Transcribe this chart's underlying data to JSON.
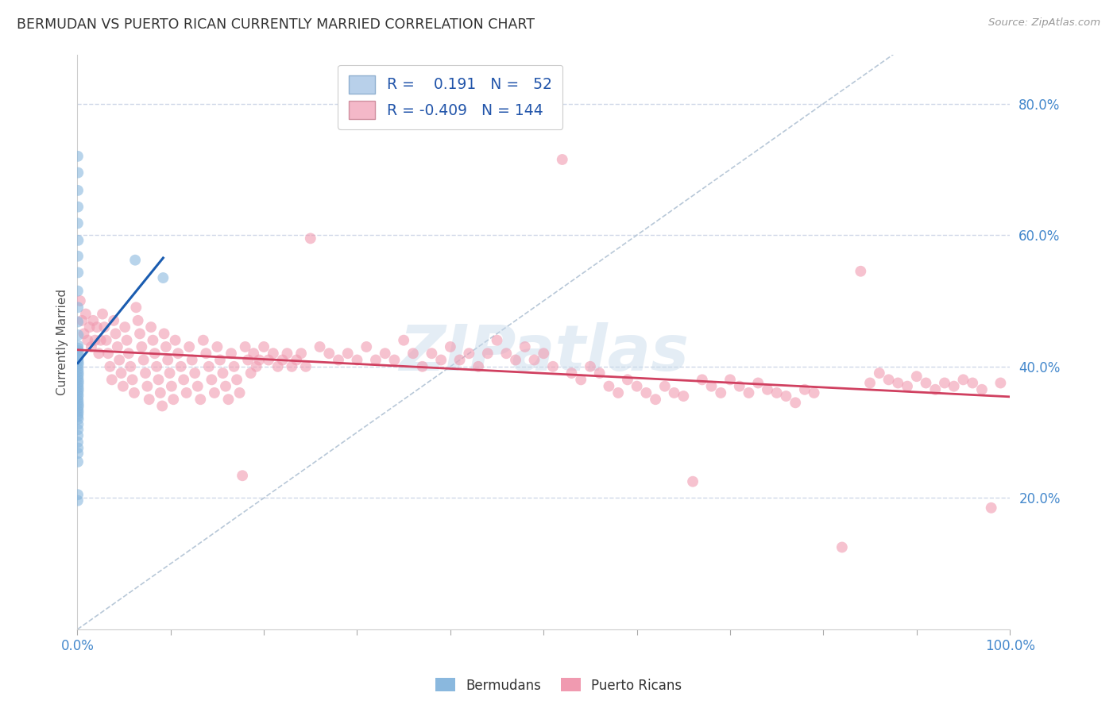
{
  "title": "BERMUDAN VS PUERTO RICAN CURRENTLY MARRIED CORRELATION CHART",
  "source": "Source: ZipAtlas.com",
  "ylabel": "Currently Married",
  "right_yticks": [
    0.2,
    0.4,
    0.6,
    0.8
  ],
  "watermark": "ZIPatlas",
  "blue_dot_color": "#8ab8de",
  "pink_dot_color": "#f09ab0",
  "blue_line_color": "#1a5cb0",
  "pink_line_color": "#d04060",
  "diag_line_color": "#b8c8d8",
  "grid_color": "#d0d8e8",
  "background_color": "#ffffff",
  "xlim": [
    0.0,
    1.0
  ],
  "ylim": [
    0.0,
    0.875
  ],
  "dot_size": 100,
  "dot_alpha": 0.6,
  "legend_blue_color": "#b8d0ea",
  "legend_pink_color": "#f4b8c8",
  "blue_points": [
    [
      0.0005,
      0.72
    ],
    [
      0.0008,
      0.695
    ],
    [
      0.0006,
      0.668
    ],
    [
      0.0007,
      0.643
    ],
    [
      0.0005,
      0.618
    ],
    [
      0.0009,
      0.592
    ],
    [
      0.0006,
      0.568
    ],
    [
      0.0008,
      0.543
    ],
    [
      0.0005,
      0.515
    ],
    [
      0.0007,
      0.49
    ],
    [
      0.0006,
      0.468
    ],
    [
      0.0009,
      0.448
    ],
    [
      0.0008,
      0.432
    ],
    [
      0.0007,
      0.428
    ],
    [
      0.001,
      0.424
    ],
    [
      0.0012,
      0.42
    ],
    [
      0.0009,
      0.416
    ],
    [
      0.0008,
      0.412
    ],
    [
      0.001,
      0.408
    ],
    [
      0.0012,
      0.404
    ],
    [
      0.0007,
      0.4
    ],
    [
      0.0009,
      0.396
    ],
    [
      0.001,
      0.392
    ],
    [
      0.0011,
      0.388
    ],
    [
      0.0008,
      0.384
    ],
    [
      0.001,
      0.38
    ],
    [
      0.0012,
      0.376
    ],
    [
      0.0009,
      0.372
    ],
    [
      0.001,
      0.368
    ],
    [
      0.0011,
      0.364
    ],
    [
      0.0008,
      0.36
    ],
    [
      0.001,
      0.356
    ],
    [
      0.0007,
      0.352
    ],
    [
      0.0009,
      0.348
    ],
    [
      0.001,
      0.344
    ],
    [
      0.0012,
      0.34
    ],
    [
      0.0008,
      0.336
    ],
    [
      0.001,
      0.332
    ],
    [
      0.0009,
      0.328
    ],
    [
      0.0007,
      0.324
    ],
    [
      0.001,
      0.32
    ],
    [
      0.0009,
      0.312
    ],
    [
      0.0008,
      0.304
    ],
    [
      0.0007,
      0.295
    ],
    [
      0.0006,
      0.285
    ],
    [
      0.0008,
      0.276
    ],
    [
      0.0007,
      0.268
    ],
    [
      0.0006,
      0.255
    ],
    [
      0.0005,
      0.196
    ],
    [
      0.062,
      0.562
    ],
    [
      0.092,
      0.535
    ],
    [
      0.0006,
      0.205
    ]
  ],
  "pink_points": [
    [
      0.003,
      0.5
    ],
    [
      0.005,
      0.47
    ],
    [
      0.007,
      0.45
    ],
    [
      0.009,
      0.48
    ],
    [
      0.011,
      0.44
    ],
    [
      0.013,
      0.46
    ],
    [
      0.015,
      0.43
    ],
    [
      0.017,
      0.47
    ],
    [
      0.019,
      0.44
    ],
    [
      0.021,
      0.46
    ],
    [
      0.023,
      0.42
    ],
    [
      0.025,
      0.44
    ],
    [
      0.027,
      0.48
    ],
    [
      0.029,
      0.46
    ],
    [
      0.031,
      0.44
    ],
    [
      0.033,
      0.42
    ],
    [
      0.035,
      0.4
    ],
    [
      0.037,
      0.38
    ],
    [
      0.039,
      0.47
    ],
    [
      0.041,
      0.45
    ],
    [
      0.043,
      0.43
    ],
    [
      0.045,
      0.41
    ],
    [
      0.047,
      0.39
    ],
    [
      0.049,
      0.37
    ],
    [
      0.051,
      0.46
    ],
    [
      0.053,
      0.44
    ],
    [
      0.055,
      0.42
    ],
    [
      0.057,
      0.4
    ],
    [
      0.059,
      0.38
    ],
    [
      0.061,
      0.36
    ],
    [
      0.063,
      0.49
    ],
    [
      0.065,
      0.47
    ],
    [
      0.067,
      0.45
    ],
    [
      0.069,
      0.43
    ],
    [
      0.071,
      0.41
    ],
    [
      0.073,
      0.39
    ],
    [
      0.075,
      0.37
    ],
    [
      0.077,
      0.35
    ],
    [
      0.079,
      0.46
    ],
    [
      0.081,
      0.44
    ],
    [
      0.083,
      0.42
    ],
    [
      0.085,
      0.4
    ],
    [
      0.087,
      0.38
    ],
    [
      0.089,
      0.36
    ],
    [
      0.091,
      0.34
    ],
    [
      0.093,
      0.45
    ],
    [
      0.095,
      0.43
    ],
    [
      0.097,
      0.41
    ],
    [
      0.099,
      0.39
    ],
    [
      0.101,
      0.37
    ],
    [
      0.103,
      0.35
    ],
    [
      0.105,
      0.44
    ],
    [
      0.108,
      0.42
    ],
    [
      0.111,
      0.4
    ],
    [
      0.114,
      0.38
    ],
    [
      0.117,
      0.36
    ],
    [
      0.12,
      0.43
    ],
    [
      0.123,
      0.41
    ],
    [
      0.126,
      0.39
    ],
    [
      0.129,
      0.37
    ],
    [
      0.132,
      0.35
    ],
    [
      0.135,
      0.44
    ],
    [
      0.138,
      0.42
    ],
    [
      0.141,
      0.4
    ],
    [
      0.144,
      0.38
    ],
    [
      0.147,
      0.36
    ],
    [
      0.15,
      0.43
    ],
    [
      0.153,
      0.41
    ],
    [
      0.156,
      0.39
    ],
    [
      0.159,
      0.37
    ],
    [
      0.162,
      0.35
    ],
    [
      0.165,
      0.42
    ],
    [
      0.168,
      0.4
    ],
    [
      0.171,
      0.38
    ],
    [
      0.174,
      0.36
    ],
    [
      0.177,
      0.234
    ],
    [
      0.18,
      0.43
    ],
    [
      0.183,
      0.41
    ],
    [
      0.186,
      0.39
    ],
    [
      0.189,
      0.42
    ],
    [
      0.192,
      0.4
    ],
    [
      0.195,
      0.41
    ],
    [
      0.2,
      0.43
    ],
    [
      0.205,
      0.41
    ],
    [
      0.21,
      0.42
    ],
    [
      0.215,
      0.4
    ],
    [
      0.22,
      0.41
    ],
    [
      0.225,
      0.42
    ],
    [
      0.23,
      0.4
    ],
    [
      0.235,
      0.41
    ],
    [
      0.24,
      0.42
    ],
    [
      0.245,
      0.4
    ],
    [
      0.25,
      0.595
    ],
    [
      0.26,
      0.43
    ],
    [
      0.27,
      0.42
    ],
    [
      0.28,
      0.41
    ],
    [
      0.29,
      0.42
    ],
    [
      0.3,
      0.41
    ],
    [
      0.31,
      0.43
    ],
    [
      0.32,
      0.41
    ],
    [
      0.33,
      0.42
    ],
    [
      0.34,
      0.41
    ],
    [
      0.35,
      0.44
    ],
    [
      0.36,
      0.42
    ],
    [
      0.37,
      0.4
    ],
    [
      0.38,
      0.42
    ],
    [
      0.39,
      0.41
    ],
    [
      0.4,
      0.43
    ],
    [
      0.41,
      0.41
    ],
    [
      0.42,
      0.42
    ],
    [
      0.43,
      0.4
    ],
    [
      0.44,
      0.42
    ],
    [
      0.45,
      0.44
    ],
    [
      0.46,
      0.42
    ],
    [
      0.47,
      0.41
    ],
    [
      0.48,
      0.43
    ],
    [
      0.49,
      0.41
    ],
    [
      0.5,
      0.42
    ],
    [
      0.51,
      0.4
    ],
    [
      0.52,
      0.715
    ],
    [
      0.53,
      0.39
    ],
    [
      0.54,
      0.38
    ],
    [
      0.55,
      0.4
    ],
    [
      0.56,
      0.39
    ],
    [
      0.57,
      0.37
    ],
    [
      0.58,
      0.36
    ],
    [
      0.59,
      0.38
    ],
    [
      0.6,
      0.37
    ],
    [
      0.61,
      0.36
    ],
    [
      0.62,
      0.35
    ],
    [
      0.63,
      0.37
    ],
    [
      0.64,
      0.36
    ],
    [
      0.65,
      0.355
    ],
    [
      0.66,
      0.225
    ],
    [
      0.67,
      0.38
    ],
    [
      0.68,
      0.37
    ],
    [
      0.69,
      0.36
    ],
    [
      0.7,
      0.38
    ],
    [
      0.71,
      0.37
    ],
    [
      0.72,
      0.36
    ],
    [
      0.73,
      0.375
    ],
    [
      0.74,
      0.365
    ],
    [
      0.75,
      0.36
    ],
    [
      0.76,
      0.355
    ],
    [
      0.77,
      0.345
    ],
    [
      0.78,
      0.365
    ],
    [
      0.79,
      0.36
    ],
    [
      0.82,
      0.125
    ],
    [
      0.84,
      0.545
    ],
    [
      0.85,
      0.375
    ],
    [
      0.86,
      0.39
    ],
    [
      0.87,
      0.38
    ],
    [
      0.88,
      0.375
    ],
    [
      0.89,
      0.37
    ],
    [
      0.9,
      0.385
    ],
    [
      0.91,
      0.375
    ],
    [
      0.92,
      0.365
    ],
    [
      0.93,
      0.375
    ],
    [
      0.94,
      0.37
    ],
    [
      0.95,
      0.38
    ],
    [
      0.96,
      0.375
    ],
    [
      0.97,
      0.365
    ],
    [
      0.98,
      0.185
    ],
    [
      0.99,
      0.375
    ]
  ]
}
